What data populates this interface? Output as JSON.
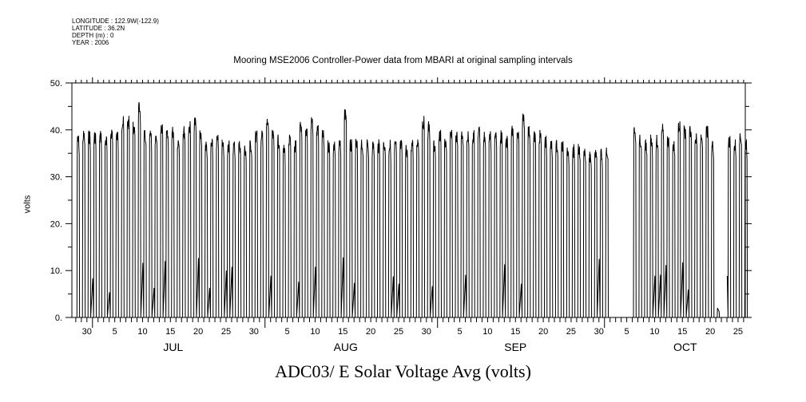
{
  "header": {
    "longitude": "LONGITUDE : 122.9W(-122.9)",
    "latitude": "LATITUDE : 36.2N",
    "depth": "DEPTH (m) : 0",
    "year": "YEAR : 2006"
  },
  "chart_data": {
    "type": "line",
    "title": "Mooring MSE2006 Controller-Power data from MBARI at original sampling intervals",
    "xlabel": "ADC03/ E Solar Voltage Avg (volts)",
    "ylabel": "volts",
    "ylim": [
      0,
      50
    ],
    "yticks": [
      "0.",
      "10.",
      "20.",
      "30.",
      "40.",
      "50."
    ],
    "xlim_days_from_jun30": [
      -2.7,
      118.3
    ],
    "x_tick_labels": [
      {
        "label": "30",
        "day": 0
      },
      {
        "label": "5",
        "day": 5
      },
      {
        "label": "10",
        "day": 10
      },
      {
        "label": "15",
        "day": 15
      },
      {
        "label": "20",
        "day": 20
      },
      {
        "label": "25",
        "day": 25
      },
      {
        "label": "30",
        "day": 30
      },
      {
        "label": "5",
        "day": 36
      },
      {
        "label": "10",
        "day": 41
      },
      {
        "label": "15",
        "day": 46
      },
      {
        "label": "20",
        "day": 51
      },
      {
        "label": "25",
        "day": 56
      },
      {
        "label": "30",
        "day": 61
      },
      {
        "label": "5",
        "day": 67
      },
      {
        "label": "10",
        "day": 72
      },
      {
        "label": "15",
        "day": 77
      },
      {
        "label": "20",
        "day": 82
      },
      {
        "label": "25",
        "day": 87
      },
      {
        "label": "30",
        "day": 92
      },
      {
        "label": "5",
        "day": 97
      },
      {
        "label": "10",
        "day": 102
      },
      {
        "label": "15",
        "day": 107
      },
      {
        "label": "20",
        "day": 112
      },
      {
        "label": "25",
        "day": 117
      }
    ],
    "months": [
      {
        "label": "JUL",
        "day": 15.5
      },
      {
        "label": "AUG",
        "day": 46.5
      },
      {
        "label": "SEP",
        "day": 77
      },
      {
        "label": "OCT",
        "day": 107.5
      }
    ],
    "month_starts": [
      1,
      32,
      63,
      93
    ],
    "series_start_day_from_jun30": -2,
    "daily_peak_volts": [
      39,
      40,
      40,
      40,
      40,
      39,
      41,
      40,
      43,
      43,
      42,
      46,
      40,
      40,
      39,
      42,
      40,
      41,
      39,
      41,
      42,
      43,
      40,
      38,
      38,
      39,
      38,
      38,
      38,
      38,
      37,
      38,
      40,
      40,
      43,
      40,
      39,
      37,
      39,
      38,
      42,
      41,
      43,
      41,
      40,
      38,
      38,
      38,
      45,
      38,
      38,
      38,
      38,
      38,
      38,
      38,
      38,
      38,
      38,
      37,
      38,
      39,
      43,
      42,
      38,
      40,
      39,
      40,
      40,
      40,
      40,
      40,
      41,
      40,
      40,
      40,
      40,
      39,
      41,
      40,
      44,
      41,
      40,
      40,
      39,
      38,
      38,
      38,
      37,
      37,
      37,
      36,
      36,
      37,
      36,
      37,
      null,
      null,
      null,
      null,
      41,
      39,
      38,
      39,
      39,
      42,
      39,
      38,
      42,
      41,
      41,
      40,
      40,
      41,
      38,
      2,
      null,
      39,
      38,
      40,
      38
    ]
  }
}
